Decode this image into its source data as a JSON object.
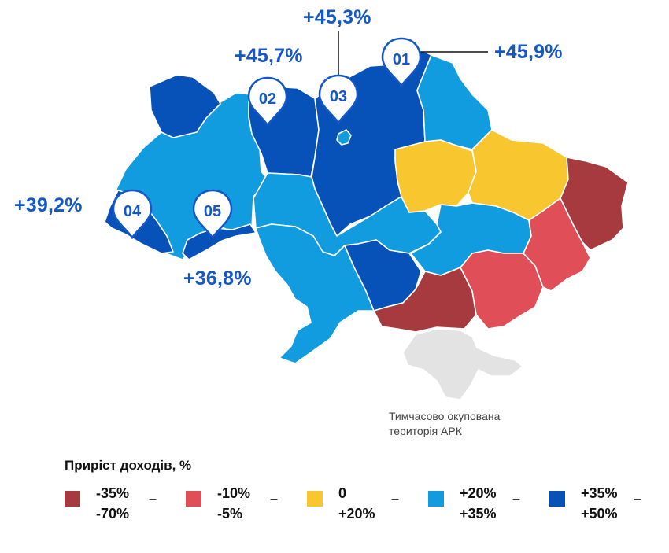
{
  "colors": {
    "dark_red": "#a63a3e",
    "red": "#e04e57",
    "yellow": "#f8c62f",
    "light_blue": "#129ce0",
    "dark_blue": "#0752b9",
    "occupied": "#e3e3e3",
    "text_blue": "#1457c7",
    "border": "#ffffff"
  },
  "callouts": [
    {
      "pin": "01",
      "value": "+45,9%"
    },
    {
      "pin": "02",
      "value": "+45,7%"
    },
    {
      "pin": "03",
      "value": "+45,3%"
    },
    {
      "pin": "04",
      "value": "+39,2%"
    },
    {
      "pin": "05",
      "value": "+36,8%"
    }
  ],
  "occupied_note": {
    "line1": "Тимчасово окупована",
    "line2": "територія АРК"
  },
  "legend": {
    "title": "Приріст доходів, %",
    "items": [
      {
        "top": "-35%",
        "bottom": "-70%",
        "color": "#a63a3e",
        "dash": "–"
      },
      {
        "top": "-10%",
        "bottom": "-5%",
        "color": "#e04e57",
        "dash": "–"
      },
      {
        "top": "0",
        "bottom": "+20%",
        "color": "#f8c62f",
        "dash": "–"
      },
      {
        "top": "+20%",
        "bottom": "+35%",
        "color": "#129ce0",
        "dash": "–"
      },
      {
        "top": "+35%",
        "bottom": "+50%",
        "color": "#0752b9",
        "dash": "–"
      }
    ]
  }
}
